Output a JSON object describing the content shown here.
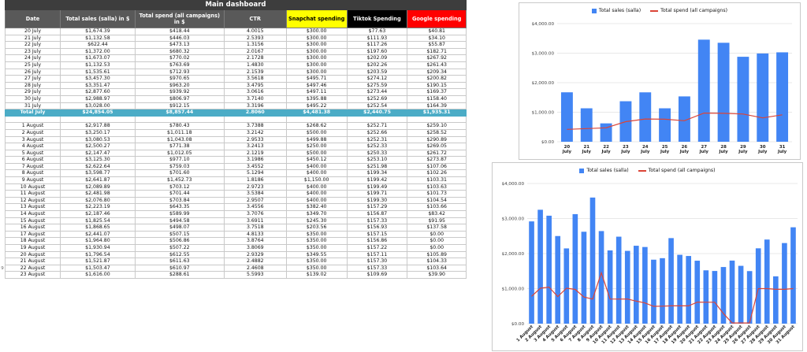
{
  "sheet": {
    "title": "Main dashboard",
    "headers": [
      "Date",
      "Total sales (salla) in $",
      "Total spend (all campaigns) in $",
      "CTR",
      "Snapchat spending",
      "Tiktok Spending",
      "Google spending"
    ],
    "colors": {
      "title_bg": "#3d3d3d",
      "header_bg": "#595959",
      "snapchat": "#ffff00",
      "tiktok": "#000000",
      "google": "#ff0000",
      "total_row": "#4bacc6"
    },
    "july_rows": [
      [
        "20 July",
        "$1,674.39",
        "$418.44",
        "4.0015",
        "$300.00",
        "$77.63",
        "$40.81"
      ],
      [
        "21 July",
        "$1,132.58",
        "$446.03",
        "2.5393",
        "$300.00",
        "$111.93",
        "$34.10"
      ],
      [
        "22 July",
        "$622.44",
        "$473.13",
        "1.3156",
        "$300.00",
        "$117.26",
        "$55.87"
      ],
      [
        "23 July",
        "$1,372.00",
        "$680.32",
        "2.0167",
        "$300.00",
        "$197.60",
        "$182.71"
      ],
      [
        "24 July",
        "$1,673.07",
        "$770.02",
        "2.1728",
        "$300.00",
        "$202.09",
        "$267.92"
      ],
      [
        "25 July",
        "$1,132.53",
        "$763.69",
        "1.4830",
        "$300.00",
        "$202.26",
        "$261.43"
      ],
      [
        "26 July",
        "$1,535.61",
        "$712.93",
        "2.1539",
        "$300.00",
        "$203.59",
        "$209.34"
      ],
      [
        "27 July",
        "$3,457.30",
        "$970.65",
        "3.5618",
        "$495.71",
        "$274.12",
        "$200.82"
      ],
      [
        "28 July",
        "$3,351.47",
        "$963.20",
        "3.4795",
        "$497.46",
        "$275.59",
        "$190.15"
      ],
      [
        "29 July",
        "$2,877.60",
        "$939.92",
        "3.0616",
        "$497.11",
        "$273.44",
        "$169.37"
      ],
      [
        "30 July",
        "$2,988.97",
        "$806.97",
        "3.7140",
        "$395.88",
        "$252.69",
        "$158.40"
      ],
      [
        "31 July",
        "$3,028.00",
        "$912.15",
        "3.3196",
        "$495.22",
        "$252.54",
        "$164.39"
      ]
    ],
    "total_row": [
      "Total July",
      "$24,854.05",
      "$8,857.44",
      "2.8060",
      "$4,481.38",
      "$2,440.75",
      "$1,935.31"
    ],
    "august_rows": [
      [
        "1 August",
        "$2,917.88",
        "$780.43",
        "3.7388",
        "$268.62",
        "$252.71",
        "$259.10"
      ],
      [
        "2 August",
        "$3,250.17",
        "$1,011.18",
        "3.2142",
        "$500.00",
        "$252.66",
        "$258.52"
      ],
      [
        "3 August",
        "$3,080.53",
        "$1,043.08",
        "2.9533",
        "$499.88",
        "$252.31",
        "$290.89"
      ],
      [
        "4 August",
        "$2,500.27",
        "$771.38",
        "3.2413",
        "$250.00",
        "$252.33",
        "$269.05"
      ],
      [
        "5 August",
        "$2,147.47",
        "$1,012.05",
        "2.1219",
        "$500.00",
        "$250.33",
        "$261.72"
      ],
      [
        "6 August",
        "$3,125.30",
        "$977.10",
        "3.1986",
        "$450.12",
        "$253.10",
        "$273.87"
      ],
      [
        "7 August",
        "$2,622.64",
        "$759.03",
        "3.4552",
        "$400.00",
        "$251.98",
        "$107.06"
      ],
      [
        "8 August",
        "$3,598.77",
        "$701.60",
        "5.1294",
        "$400.00",
        "$199.34",
        "$102.26"
      ],
      [
        "9 August",
        "$2,641.87",
        "$1,452.73",
        "1.8186",
        "$1,150.00",
        "$199.42",
        "$103.31"
      ],
      [
        "10 August",
        "$2,089.89",
        "$703.12",
        "2.9723",
        "$400.00",
        "$199.49",
        "$103.63"
      ],
      [
        "11 August",
        "$2,481.98",
        "$701.44",
        "3.5384",
        "$400.00",
        "$199.71",
        "$101.73"
      ],
      [
        "12 August",
        "$2,076.80",
        "$703.84",
        "2.9507",
        "$400.00",
        "$199.30",
        "$104.54"
      ],
      [
        "13 August",
        "$2,223.19",
        "$643.35",
        "3.4556",
        "$382.40",
        "$157.29",
        "$103.66"
      ],
      [
        "14 August",
        "$2,187.46",
        "$589.99",
        "3.7076",
        "$349.70",
        "$156.87",
        "$83.42"
      ],
      [
        "15 August",
        "$1,825.54",
        "$494.58",
        "3.6911",
        "$245.30",
        "$157.33",
        "$91.95"
      ],
      [
        "16 August",
        "$1,868.65",
        "$498.07",
        "3.7518",
        "$203.56",
        "$156.93",
        "$137.58"
      ],
      [
        "17 August",
        "$2,441.07",
        "$507.15",
        "4.8133",
        "$350.00",
        "$157.15",
        "$0.00"
      ],
      [
        "18 August",
        "$1,964.80",
        "$506.86",
        "3.8764",
        "$350.00",
        "$156.86",
        "$0.00"
      ],
      [
        "19 August",
        "$1,930.94",
        "$507.22",
        "3.8069",
        "$350.00",
        "$157.22",
        "$0.00"
      ],
      [
        "20 August",
        "$1,796.54",
        "$612.55",
        "2.9329",
        "$349.55",
        "$157.11",
        "$105.89"
      ],
      [
        "21 August",
        "$1,521.87",
        "$611.63",
        "2.4882",
        "$350.00",
        "$157.30",
        "$104.33"
      ],
      [
        "22 August",
        "$1,503.47",
        "$610.97",
        "2.4608",
        "$350.00",
        "$157.33",
        "$103.64"
      ],
      [
        "23 August",
        "$1,616.00",
        "$288.61",
        "5.5993",
        "$139.02",
        "$109.69",
        "$39.90"
      ]
    ],
    "visible_row_numbers": [
      "",
      "",
      "",
      "",
      "",
      "",
      "",
      "",
      "",
      "",
      "",
      "",
      "",
      "",
      "",
      "",
      "",
      "",
      "",
      "",
      "",
      "",
      "",
      "",
      "",
      "",
      "",
      "",
      "",
      "",
      "",
      "",
      "",
      "",
      "",
      "9",
      "",
      "",
      "",
      "",
      "",
      "",
      "",
      "",
      "",
      ""
    ]
  },
  "chart_data": [
    {
      "type": "bar",
      "title": "",
      "legend": [
        "Total sales (salla)",
        "Total spend (all campaigns)"
      ],
      "legend_position": "top",
      "categories": [
        "20 July",
        "21 July",
        "22 July",
        "23 July",
        "24 July",
        "25 July",
        "26 July",
        "27 July",
        "28 July",
        "29 July",
        "30 July",
        "31 July"
      ],
      "series": [
        {
          "name": "Total sales (salla)",
          "type": "bar",
          "color": "#4285f4",
          "values": [
            1674.39,
            1132.58,
            622.44,
            1372.0,
            1673.07,
            1132.53,
            1535.61,
            3457.3,
            3351.47,
            2877.6,
            2988.97,
            3028.0
          ]
        },
        {
          "name": "Total spend (all campaigns)",
          "type": "line",
          "color": "#db4437",
          "values": [
            418.44,
            446.03,
            473.13,
            680.32,
            770.02,
            763.69,
            712.93,
            970.65,
            963.2,
            939.92,
            806.97,
            912.15
          ]
        }
      ],
      "ylim": [
        0,
        4000
      ],
      "yticks": [
        "$0.00",
        "$1,000.00",
        "$2,000.00",
        "$3,000.00",
        "$4,000.00"
      ],
      "grid": true
    },
    {
      "type": "bar",
      "title": "",
      "legend": [
        "Total sales (salla)",
        "Total spend (all campaigns)"
      ],
      "legend_position": "top",
      "categories": [
        "1 August",
        "2 August",
        "3 August",
        "4 August",
        "5 August",
        "6 August",
        "7 August",
        "8 August",
        "9 August",
        "10 August",
        "11 August",
        "12 August",
        "13 August",
        "14 August",
        "15 August",
        "16 August",
        "17 August",
        "18 August",
        "19 August",
        "20 August",
        "21 August",
        "22 August",
        "23 August",
        "24 August",
        "25 August",
        "26 August",
        "27 August",
        "28 August",
        "29 August",
        "30 August",
        "31 August"
      ],
      "series": [
        {
          "name": "Total sales (salla)",
          "type": "bar",
          "color": "#4285f4",
          "values": [
            2917.88,
            3250.17,
            3080.53,
            2500.27,
            2147.47,
            3125.3,
            2622.64,
            3598.77,
            2641.87,
            2089.89,
            2481.98,
            2076.8,
            2223.19,
            2187.46,
            1825.54,
            1868.65,
            2441.07,
            1964.8,
            1930.94,
            1796.54,
            1521.87,
            1503.47,
            1616.0,
            1800,
            1650,
            1500,
            2150,
            2400,
            1350,
            2300,
            2750
          ]
        },
        {
          "name": "Total spend (all campaigns)",
          "type": "line",
          "color": "#db4437",
          "values": [
            780.43,
            1011.18,
            1043.08,
            771.38,
            1012.05,
            977.1,
            759.03,
            701.6,
            1452.73,
            703.12,
            701.44,
            703.84,
            643.35,
            589.99,
            494.58,
            498.07,
            507.15,
            506.86,
            507.22,
            612.55,
            611.63,
            610.97,
            288.61,
            20,
            20,
            20,
            1000,
            1000,
            980,
            980,
            1000
          ]
        }
      ],
      "ylim": [
        0,
        4000
      ],
      "yticks": [
        "$0.00",
        "$1,000.00",
        "$2,000.00",
        "$3,000.00",
        "$4,000.00"
      ],
      "grid": true
    }
  ]
}
